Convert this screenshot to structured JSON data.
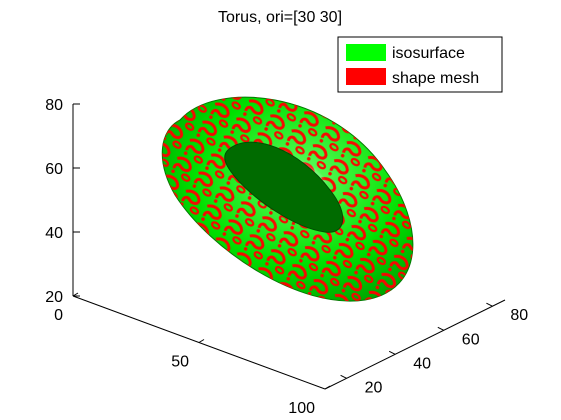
{
  "chart_data": {
    "type": "surface3d",
    "title": "Torus, ori=[30 30]",
    "view": {
      "azimuth": 30,
      "elevation": 30
    },
    "axes": {
      "x": {
        "ticks": [
          "0",
          "50",
          "100"
        ]
      },
      "y": {
        "ticks": [
          "20",
          "40",
          "60",
          "80"
        ]
      },
      "z": {
        "ticks": [
          "20",
          "40",
          "60",
          "80"
        ]
      }
    },
    "series": [
      {
        "name": "isosurface",
        "color": "#00ff00"
      },
      {
        "name": "shape mesh",
        "color": "#ff0000"
      }
    ],
    "legend_placement": "top-right",
    "grid": false
  }
}
